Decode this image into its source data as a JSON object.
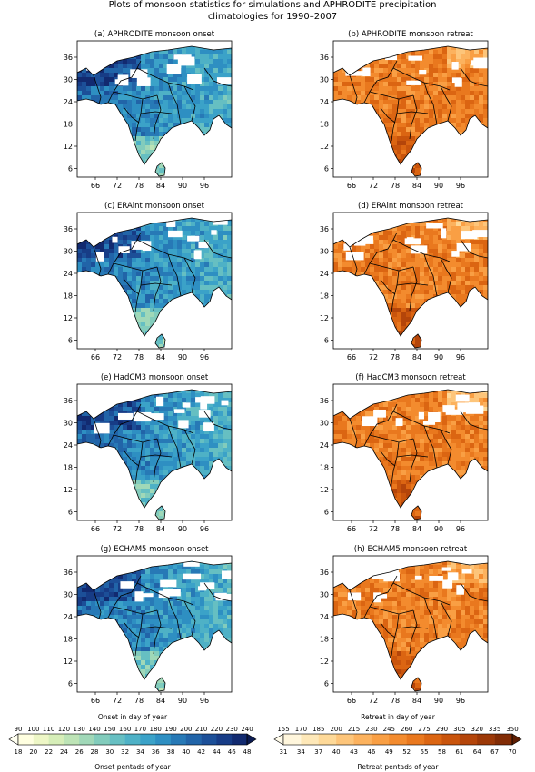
{
  "figure": {
    "title_line1": "Plots of  monsoon statistics for simulations and APHRODITE precipitation",
    "title_line2": "climatologies for 1990–2007"
  },
  "panels": [
    {
      "id": "a",
      "title": "(a)  APHRODITE monsoon onset",
      "kind": "onset"
    },
    {
      "id": "b",
      "title": "(b)  APHRODITE monsoon retreat",
      "kind": "retreat"
    },
    {
      "id": "c",
      "title": "(c)  ERAint monsoon onset",
      "kind": "onset"
    },
    {
      "id": "d",
      "title": "(d)  ERAint monsoon retreat",
      "kind": "retreat"
    },
    {
      "id": "e",
      "title": "(e)  HadCM3 monsoon onset",
      "kind": "onset"
    },
    {
      "id": "f",
      "title": "(f)  HadCM3 monsoon retreat",
      "kind": "retreat"
    },
    {
      "id": "g",
      "title": "(g)  ECHAM5 monsoon onset",
      "kind": "onset"
    },
    {
      "id": "h",
      "title": "(h)  ECHAM5 monsoon retreat",
      "kind": "retreat"
    }
  ],
  "axes": {
    "lon_ticks": [
      "66",
      "72",
      "78",
      "84",
      "90",
      "96"
    ],
    "lat_ticks": [
      "36",
      "30",
      "24",
      "18",
      "12",
      "6"
    ]
  },
  "colorbars": {
    "onset": {
      "top_label": "Onset in day of year",
      "bottom_label": "Onset pentads of year",
      "top_ticks": [
        "90",
        "100",
        "110",
        "120",
        "130",
        "140",
        "150",
        "160",
        "170",
        "180",
        "190",
        "200",
        "210",
        "220",
        "230",
        "240"
      ],
      "bottom_ticks": [
        "18",
        "20",
        "22",
        "24",
        "26",
        "28",
        "30",
        "32",
        "34",
        "36",
        "38",
        "40",
        "42",
        "44",
        "46",
        "48"
      ],
      "colors": [
        "#ffffe0",
        "#eef7c6",
        "#d6eeb8",
        "#bde4b6",
        "#a0d8b8",
        "#82ccbc",
        "#66bfc2",
        "#4eb1c6",
        "#3ba2c8",
        "#2e8fc2",
        "#2779b6",
        "#2164a8",
        "#1c4f98",
        "#173c86",
        "#122a70"
      ],
      "under_color": "#fffff0",
      "over_color": "#0b1a50"
    },
    "retreat": {
      "top_label": "Retreat in day of year",
      "bottom_label": "Retreat pentads of year",
      "top_ticks": [
        "155",
        "170",
        "185",
        "200",
        "215",
        "230",
        "245",
        "260",
        "275",
        "290",
        "305",
        "320",
        "335",
        "350"
      ],
      "bottom_ticks": [
        "31",
        "34",
        "37",
        "40",
        "43",
        "46",
        "49",
        "52",
        "55",
        "58",
        "61",
        "64",
        "67",
        "70"
      ],
      "colors": [
        "#fff6dc",
        "#fee8b8",
        "#fed998",
        "#fdc57a",
        "#fcb25e",
        "#f99f44",
        "#f38b2e",
        "#e9781e",
        "#db6512",
        "#c9540c",
        "#b4450a",
        "#9c3807",
        "#822c05"
      ],
      "under_color": "#fffbea",
      "over_color": "#5e1e03"
    }
  }
}
